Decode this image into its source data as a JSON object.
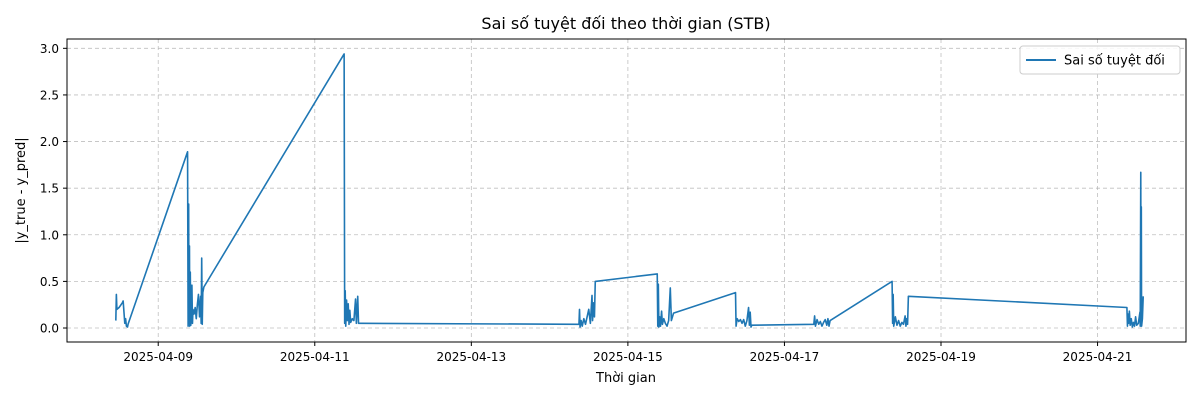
{
  "chart_data": {
    "type": "line",
    "title": "Sai số tuyệt đối theo thời gian (STB)",
    "xlabel": "Thời gian",
    "ylabel": "|y_true - y_pred|",
    "xlim": [
      "2025-04-07T20:02:00",
      "2025-04-22T03:07:00"
    ],
    "ylim": [
      -0.15,
      3.1
    ],
    "x_ticks": [
      "2025-04-09",
      "2025-04-11",
      "2025-04-13",
      "2025-04-15",
      "2025-04-17",
      "2025-04-19",
      "2025-04-21"
    ],
    "y_ticks": [
      "0.0",
      "0.5",
      "1.0",
      "1.5",
      "2.0",
      "2.5",
      "3.0"
    ],
    "grid": true,
    "legend_position": "top-right",
    "series": [
      {
        "name": "Sai số tuyệt đối",
        "color": "#1f77b4",
        "points": [
          [
            "2025-04-08T11:00:00",
            0.08
          ],
          [
            "2025-04-08T11:10:00",
            0.36
          ],
          [
            "2025-04-08T11:20:00",
            0.2
          ],
          [
            "2025-04-08T12:00:00",
            0.22
          ],
          [
            "2025-04-08T13:00:00",
            0.27
          ],
          [
            "2025-04-08T13:15:00",
            0.29
          ],
          [
            "2025-04-08T13:45:00",
            0.05
          ],
          [
            "2025-04-08T14:00:00",
            0.1
          ],
          [
            "2025-04-08T14:15:00",
            0.02
          ],
          [
            "2025-04-08T14:35:00",
            0.01
          ],
          [
            "2025-04-08T14:45:00",
            0.04
          ],
          [
            "2025-04-09T09:00:00",
            1.89
          ],
          [
            "2025-04-09T09:10:00",
            0.02
          ],
          [
            "2025-04-09T09:20:00",
            1.33
          ],
          [
            "2025-04-09T09:25:00",
            0.05
          ],
          [
            "2025-04-09T09:35:00",
            0.88
          ],
          [
            "2025-04-09T09:40:00",
            0.02
          ],
          [
            "2025-04-09T09:50:00",
            0.6
          ],
          [
            "2025-04-09T10:00:00",
            0.03
          ],
          [
            "2025-04-09T10:10:00",
            0.32
          ],
          [
            "2025-04-09T10:20:00",
            0.46
          ],
          [
            "2025-04-09T10:30:00",
            0.05
          ],
          [
            "2025-04-09T10:40:00",
            0.2
          ],
          [
            "2025-04-09T11:00:00",
            0.15
          ],
          [
            "2025-04-09T11:20:00",
            0.22
          ],
          [
            "2025-04-09T11:40:00",
            0.1
          ],
          [
            "2025-04-09T12:00:00",
            0.25
          ],
          [
            "2025-04-09T12:20:00",
            0.36
          ],
          [
            "2025-04-09T12:40:00",
            0.12
          ],
          [
            "2025-04-09T13:00:00",
            0.34
          ],
          [
            "2025-04-09T13:10:00",
            0.05
          ],
          [
            "2025-04-09T13:20:00",
            0.75
          ],
          [
            "2025-04-09T13:30:00",
            0.04
          ],
          [
            "2025-04-09T13:40:00",
            0.38
          ],
          [
            "2025-04-09T14:00:00",
            0.44
          ],
          [
            "2025-04-11T09:00:00",
            2.94
          ],
          [
            "2025-04-11T09:10:00",
            0.05
          ],
          [
            "2025-04-11T09:20:00",
            0.4
          ],
          [
            "2025-04-11T09:30:00",
            0.02
          ],
          [
            "2025-04-11T09:45:00",
            0.3
          ],
          [
            "2025-04-11T10:00:00",
            0.08
          ],
          [
            "2025-04-11T10:15:00",
            0.26
          ],
          [
            "2025-04-11T10:30:00",
            0.04
          ],
          [
            "2025-04-11T10:45:00",
            0.19
          ],
          [
            "2025-04-11T11:00:00",
            0.06
          ],
          [
            "2025-04-11T11:30:00",
            0.1
          ],
          [
            "2025-04-11T12:00:00",
            0.08
          ],
          [
            "2025-04-11T12:30:00",
            0.31
          ],
          [
            "2025-04-11T12:45:00",
            0.05
          ],
          [
            "2025-04-11T13:10:00",
            0.34
          ],
          [
            "2025-04-11T13:25:00",
            0.05
          ],
          [
            "2025-04-11T14:00:00",
            0.05
          ],
          [
            "2025-04-14T09:00:00",
            0.04
          ],
          [
            "2025-04-14T09:10:00",
            0.2
          ],
          [
            "2025-04-14T09:20:00",
            0.01
          ],
          [
            "2025-04-14T09:40:00",
            0.08
          ],
          [
            "2025-04-14T10:00:00",
            0.02
          ],
          [
            "2025-04-14T10:30:00",
            0.1
          ],
          [
            "2025-04-14T11:00:00",
            0.04
          ],
          [
            "2025-04-14T11:30:00",
            0.12
          ],
          [
            "2025-04-14T12:00:00",
            0.2
          ],
          [
            "2025-04-14T12:30:00",
            0.05
          ],
          [
            "2025-04-14T13:00:00",
            0.35
          ],
          [
            "2025-04-14T13:10:00",
            0.08
          ],
          [
            "2025-04-14T13:30:00",
            0.27
          ],
          [
            "2025-04-14T13:45:00",
            0.12
          ],
          [
            "2025-04-14T14:00:00",
            0.5
          ],
          [
            "2025-04-15T09:00:00",
            0.58
          ],
          [
            "2025-04-15T09:10:00",
            0.02
          ],
          [
            "2025-04-15T09:20:00",
            0.47
          ],
          [
            "2025-04-15T09:30:00",
            0.01
          ],
          [
            "2025-04-15T09:45:00",
            0.12
          ],
          [
            "2025-04-15T10:00:00",
            0.02
          ],
          [
            "2025-04-15T10:20:00",
            0.18
          ],
          [
            "2025-04-15T10:35:00",
            0.04
          ],
          [
            "2025-04-15T11:00:00",
            0.1
          ],
          [
            "2025-04-15T11:30:00",
            0.05
          ],
          [
            "2025-04-15T12:00:00",
            0.02
          ],
          [
            "2025-04-15T12:30:00",
            0.08
          ],
          [
            "2025-04-15T13:00:00",
            0.43
          ],
          [
            "2025-04-15T13:20:00",
            0.08
          ],
          [
            "2025-04-15T14:00:00",
            0.16
          ],
          [
            "2025-04-16T09:00:00",
            0.38
          ],
          [
            "2025-04-16T09:10:00",
            0.02
          ],
          [
            "2025-04-16T09:30:00",
            0.1
          ],
          [
            "2025-04-16T10:00:00",
            0.07
          ],
          [
            "2025-04-16T10:30:00",
            0.09
          ],
          [
            "2025-04-16T11:00:00",
            0.05
          ],
          [
            "2025-04-16T11:30:00",
            0.09
          ],
          [
            "2025-04-16T12:00:00",
            0.02
          ],
          [
            "2025-04-16T12:30:00",
            0.08
          ],
          [
            "2025-04-16T13:00:00",
            0.22
          ],
          [
            "2025-04-16T13:15:00",
            0.03
          ],
          [
            "2025-04-16T13:30:00",
            0.17
          ],
          [
            "2025-04-16T13:45:00",
            0.01
          ],
          [
            "2025-04-16T14:00:00",
            0.03
          ],
          [
            "2025-04-17T09:00:00",
            0.04
          ],
          [
            "2025-04-17T09:15:00",
            0.13
          ],
          [
            "2025-04-17T09:30:00",
            0.02
          ],
          [
            "2025-04-17T10:00:00",
            0.09
          ],
          [
            "2025-04-17T10:30:00",
            0.04
          ],
          [
            "2025-04-17T11:00:00",
            0.07
          ],
          [
            "2025-04-17T11:30:00",
            0.02
          ],
          [
            "2025-04-17T12:00:00",
            0.06
          ],
          [
            "2025-04-17T12:30:00",
            0.09
          ],
          [
            "2025-04-17T13:00:00",
            0.03
          ],
          [
            "2025-04-17T13:20:00",
            0.1
          ],
          [
            "2025-04-17T13:40:00",
            0.02
          ],
          [
            "2025-04-17T14:00:00",
            0.08
          ],
          [
            "2025-04-18T09:00:00",
            0.5
          ],
          [
            "2025-04-18T09:10:00",
            0.05
          ],
          [
            "2025-04-18T09:20:00",
            0.36
          ],
          [
            "2025-04-18T09:30:00",
            0.02
          ],
          [
            "2025-04-18T10:00:00",
            0.12
          ],
          [
            "2025-04-18T10:30:00",
            0.03
          ],
          [
            "2025-04-18T11:00:00",
            0.08
          ],
          [
            "2025-04-18T11:30:00",
            0.02
          ],
          [
            "2025-04-18T12:00:00",
            0.06
          ],
          [
            "2025-04-18T12:30:00",
            0.04
          ],
          [
            "2025-04-18T13:00:00",
            0.13
          ],
          [
            "2025-04-18T13:15:00",
            0.02
          ],
          [
            "2025-04-18T13:30:00",
            0.1
          ],
          [
            "2025-04-18T13:45:00",
            0.04
          ],
          [
            "2025-04-18T14:00:00",
            0.34
          ],
          [
            "2025-04-21T09:00:00",
            0.22
          ],
          [
            "2025-04-21T09:10:00",
            0.02
          ],
          [
            "2025-04-21T09:20:00",
            0.15
          ],
          [
            "2025-04-21T09:30:00",
            0.05
          ],
          [
            "2025-04-21T09:45:00",
            0.18
          ],
          [
            "2025-04-21T10:00:00",
            0.03
          ],
          [
            "2025-04-21T10:20:00",
            0.1
          ],
          [
            "2025-04-21T10:40:00",
            0.01
          ],
          [
            "2025-04-21T11:00:00",
            0.06
          ],
          [
            "2025-04-21T11:20:00",
            0.02
          ],
          [
            "2025-04-21T11:40:00",
            0.12
          ],
          [
            "2025-04-21T12:00:00",
            0.03
          ],
          [
            "2025-04-21T12:30:00",
            0.05
          ],
          [
            "2025-04-21T13:00:00",
            0.17
          ],
          [
            "2025-04-21T13:05:00",
            0.02
          ],
          [
            "2025-04-21T13:15:00",
            1.67
          ],
          [
            "2025-04-21T13:20:00",
            0.05
          ],
          [
            "2025-04-21T13:25:00",
            1.3
          ],
          [
            "2025-04-21T13:30:00",
            0.02
          ],
          [
            "2025-04-21T13:45:00",
            0.1
          ],
          [
            "2025-04-21T14:00:00",
            0.34
          ]
        ]
      }
    ]
  }
}
